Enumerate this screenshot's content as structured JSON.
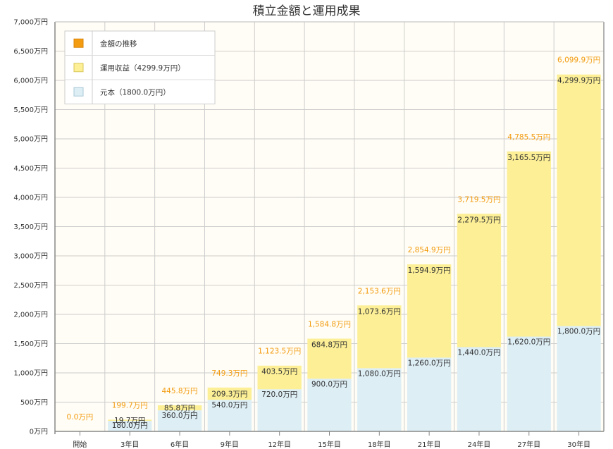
{
  "chart_data": {
    "type": "bar",
    "stacked": true,
    "title": "積立金額と運用成果",
    "xlabel": "",
    "ylabel": "",
    "ylim": [
      0,
      7000
    ],
    "y_ticks": [
      0,
      500,
      1000,
      1500,
      2000,
      2500,
      3000,
      3500,
      4000,
      4500,
      5000,
      5500,
      6000,
      6500,
      7000
    ],
    "y_tick_labels": [
      "0万円",
      "500万円",
      "1,000万円",
      "1,500万円",
      "2,000万円",
      "2,500万円",
      "3,000万円",
      "3,500万円",
      "4,000万円",
      "4,500万円",
      "5,000万円",
      "5,500万円",
      "6,000万円",
      "6,500万円",
      "7,000万円"
    ],
    "grid": true,
    "legend_position": "top-left",
    "categories": [
      "開始",
      "3年目",
      "6年目",
      "9年目",
      "12年目",
      "15年目",
      "18年目",
      "21年目",
      "24年目",
      "27年目",
      "30年目"
    ],
    "series": [
      {
        "name": "元本（1800.0万円）",
        "color": "#ddeef5",
        "values": [
          0,
          180,
          360,
          540,
          720,
          900,
          1080,
          1260,
          1440,
          1620,
          1800
        ],
        "labels": [
          "",
          "180.0万円",
          "360.0万円",
          "540.0万円",
          "720.0万円",
          "900.0万円",
          "1,080.0万円",
          "1,260.0万円",
          "1,440.0万円",
          "1,620.0万円",
          "1,800.0万円"
        ]
      },
      {
        "name": "運用収益（4299.9万円）",
        "color": "#fcef96",
        "values": [
          0,
          19.7,
          85.8,
          209.3,
          403.5,
          684.8,
          1073.6,
          1594.9,
          2279.5,
          3165.5,
          4299.9
        ],
        "labels": [
          "",
          "19.7万円",
          "85.8万円",
          "209.3万円",
          "403.5万円",
          "684.8万円",
          "1,073.6万円",
          "1,594.9万円",
          "2,279.5万円",
          "3,165.5万円",
          "4,299.9万円"
        ]
      }
    ],
    "totals": {
      "name": "金額の推移",
      "color": "#f39c12",
      "values": [
        0,
        199.7,
        445.8,
        749.3,
        1123.5,
        1584.8,
        2153.6,
        2854.9,
        3719.5,
        4785.5,
        6099.9
      ],
      "labels": [
        "0.0万円",
        "199.7万円",
        "445.8万円",
        "749.3万円",
        "1,123.5万円",
        "1,584.8万円",
        "2,153.6万円",
        "2,854.9万円",
        "3,719.5万円",
        "4,785.5万円",
        "6,099.9万円"
      ]
    },
    "colors": {
      "plot_background": "#fffdf5",
      "grid": "#cccccc",
      "axis": "#888888"
    }
  }
}
